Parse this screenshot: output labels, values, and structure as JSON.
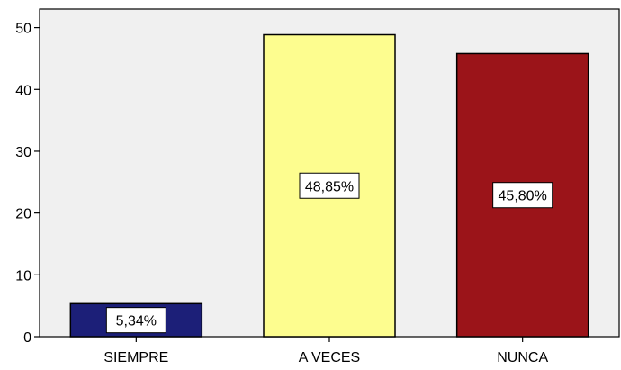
{
  "chart_data": {
    "type": "bar",
    "categories": [
      "SIEMPRE",
      "A VECES",
      "NUNCA"
    ],
    "values": [
      5.34,
      48.85,
      45.8
    ],
    "data_labels": [
      "5,34%",
      "48,85%",
      "45,80%"
    ],
    "yticks": [
      "0",
      "10",
      "20",
      "30",
      "40",
      "50"
    ],
    "ylim": [
      0,
      53
    ],
    "grid": false,
    "colors": [
      "#1c1f78",
      "#fdfd8f",
      "#9b1419"
    ],
    "plot_background": "#f0f0f0",
    "title": "",
    "xlabel": "",
    "ylabel": ""
  }
}
